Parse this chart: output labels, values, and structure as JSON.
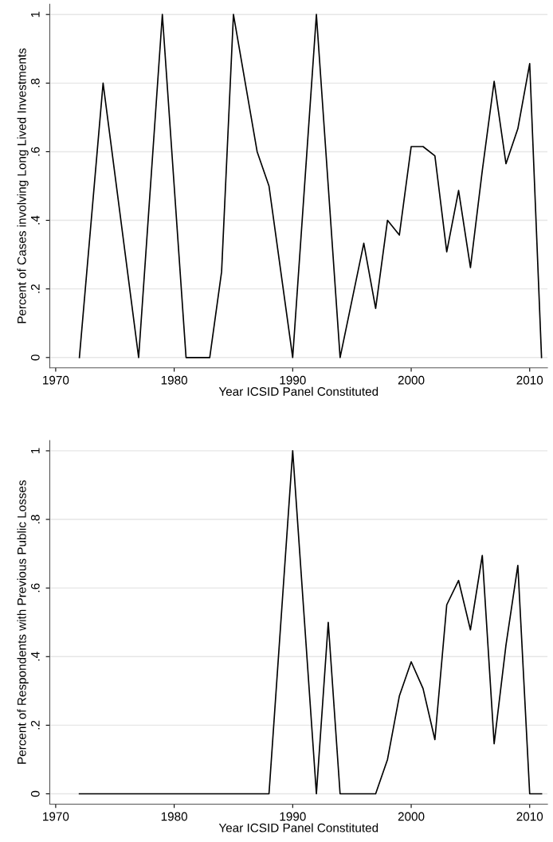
{
  "chart_data": [
    {
      "type": "line",
      "xlabel": "Year ICSID Panel Constituted",
      "ylabel": "Percent of Cases involving Long Lived Investments",
      "x": [
        1972,
        1974,
        1977,
        1978,
        1979,
        1981,
        1982,
        1983,
        1984,
        1985,
        1987,
        1988,
        1990,
        1992,
        1993,
        1994,
        1996,
        1997,
        1998,
        1999,
        2000,
        2001,
        2002,
        2003,
        2004,
        2005,
        2006,
        2007,
        2008,
        2009,
        2010,
        2011
      ],
      "series": [
        {
          "color": "#000000",
          "values": [
            0,
            0.8,
            0,
            0.5,
            1,
            0,
            0,
            0,
            0.25,
            1,
            0.6,
            0.5,
            0,
            1,
            0.5,
            0,
            0.333,
            0.143,
            0.4,
            0.357,
            0.615,
            0.615,
            0.588,
            0.308,
            0.487,
            0.262,
            0.545,
            0.805,
            0.565,
            0.667,
            0.857,
            0
          ]
        }
      ],
      "xlim": [
        1969.5,
        2011.5
      ],
      "xticks": [
        1970,
        1980,
        1990,
        2000,
        2010
      ],
      "ylim": [
        -0.03,
        1.03
      ],
      "yticks": [
        {
          "value": 0,
          "label": "0"
        },
        {
          "value": 0.2,
          "label": ".2"
        },
        {
          "value": 0.4,
          "label": ".4"
        },
        {
          "value": 0.6,
          "label": ".6"
        },
        {
          "value": 0.8,
          "label": ".8"
        },
        {
          "value": 1,
          "label": "1"
        }
      ],
      "grid": "y"
    },
    {
      "type": "line",
      "xlabel": "Year ICSID Panel Constituted",
      "ylabel": "Percent of Respondents with Previous Public Losses",
      "x": [
        1972,
        1974,
        1977,
        1978,
        1979,
        1981,
        1982,
        1983,
        1984,
        1985,
        1987,
        1988,
        1990,
        1992,
        1993,
        1994,
        1996,
        1997,
        1998,
        1999,
        2000,
        2001,
        2002,
        2003,
        2004,
        2005,
        2006,
        2007,
        2008,
        2009,
        2010,
        2011
      ],
      "series": [
        {
          "color": "#000000",
          "values": [
            0,
            0,
            0,
            0,
            0,
            0,
            0,
            0,
            0,
            0,
            0,
            0,
            1,
            0,
            0.5,
            0,
            0,
            0,
            0.1,
            0.285,
            0.385,
            0.307,
            0.158,
            0.551,
            0.622,
            0.478,
            0.695,
            0.146,
            0.434,
            0.666,
            0,
            0
          ]
        }
      ],
      "xlim": [
        1969.5,
        2011.5
      ],
      "xticks": [
        1970,
        1980,
        1990,
        2000,
        2010
      ],
      "ylim": [
        -0.03,
        1.03
      ],
      "yticks": [
        {
          "value": 0,
          "label": "0"
        },
        {
          "value": 0.2,
          "label": ".2"
        },
        {
          "value": 0.4,
          "label": ".4"
        },
        {
          "value": 0.6,
          "label": ".6"
        },
        {
          "value": 0.8,
          "label": ".8"
        },
        {
          "value": 1,
          "label": "1"
        }
      ],
      "grid": "y"
    }
  ]
}
